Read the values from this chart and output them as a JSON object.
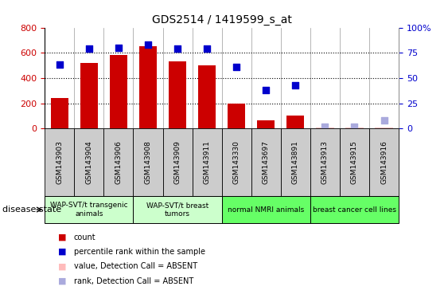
{
  "title": "GDS2514 / 1419599_s_at",
  "samples": [
    "GSM143903",
    "GSM143904",
    "GSM143906",
    "GSM143908",
    "GSM143909",
    "GSM143911",
    "GSM143330",
    "GSM143697",
    "GSM143891",
    "GSM143913",
    "GSM143915",
    "GSM143916"
  ],
  "bar_values": [
    240,
    520,
    585,
    650,
    530,
    500,
    200,
    65,
    100,
    0,
    0,
    0
  ],
  "bar_absent": [
    false,
    false,
    false,
    false,
    false,
    false,
    false,
    false,
    false,
    true,
    true,
    true
  ],
  "bar_absent_values": [
    5,
    5,
    5,
    5,
    5,
    5,
    5,
    5,
    5,
    5,
    5,
    8
  ],
  "rank_values": [
    63,
    79,
    80,
    83,
    79,
    79,
    61,
    38,
    43,
    2,
    2,
    8
  ],
  "rank_absent": [
    false,
    false,
    false,
    false,
    false,
    false,
    false,
    false,
    false,
    true,
    true,
    true
  ],
  "ylim_left": [
    0,
    800
  ],
  "ylim_right": [
    0,
    100
  ],
  "yticks_left": [
    0,
    200,
    400,
    600,
    800
  ],
  "yticks_right": [
    0,
    25,
    50,
    75,
    100
  ],
  "groups": [
    {
      "label": "WAP-SVT/t transgenic\nanimals",
      "start": 0,
      "end": 3,
      "color": "#ccffcc"
    },
    {
      "label": "WAP-SVT/t breast\ntumors",
      "start": 3,
      "end": 6,
      "color": "#ccffcc"
    },
    {
      "label": "normal NMRI animals",
      "start": 6,
      "end": 9,
      "color": "#66ff66"
    },
    {
      "label": "breast cancer cell lines",
      "start": 9,
      "end": 12,
      "color": "#66ff66"
    }
  ],
  "legend_labels": [
    "count",
    "percentile rank within the sample",
    "value, Detection Call = ABSENT",
    "rank, Detection Call = ABSENT"
  ],
  "disease_state_label": "disease state",
  "bar_color_present": "#cc0000",
  "bar_color_absent": "#ffbbbb",
  "rank_color_present": "#0000cc",
  "rank_color_absent": "#aaaadd",
  "tick_bg_color": "#cccccc",
  "bar_width": 0.6
}
